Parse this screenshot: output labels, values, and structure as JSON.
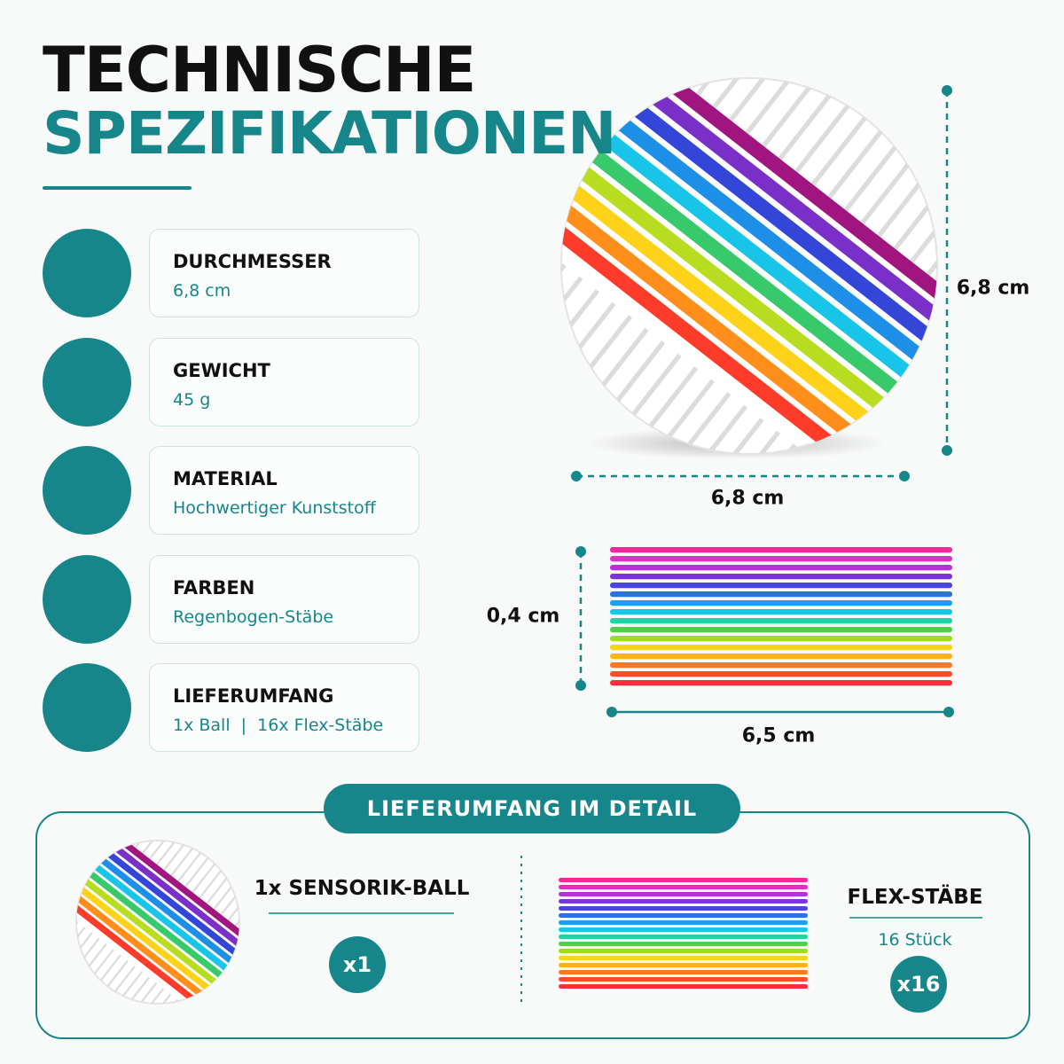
{
  "header": {
    "line1": "TECHNISCHE",
    "line2": "SPEZIFIKATIONEN"
  },
  "specs": [
    {
      "label": "DURCHMESSER",
      "value": "6,8 cm"
    },
    {
      "label": "GEWICHT",
      "value": "45 g"
    },
    {
      "label": "MATERIAL",
      "value": "Hochwertiger Kunststoff"
    },
    {
      "label": "FARBEN",
      "value": "Regenbogen-Stäbe"
    },
    {
      "label": "LIEFERUMFANG",
      "value": "1x Ball  |  16x Flex-Stäbe"
    }
  ],
  "dimensions": {
    "ball_height": "6,8 cm",
    "ball_width": "6,8 cm",
    "stick_thickness": "0,4 cm",
    "stick_length": "6,5 cm"
  },
  "detail": {
    "banner": "LIEFERUMFANG IM DETAIL",
    "ball": {
      "label": "1x SENSORIK-BALL",
      "badge": "x1"
    },
    "sticks": {
      "label": "FLEX-STÄBE",
      "sub": "16 Stück",
      "badge": "x16"
    }
  }
}
